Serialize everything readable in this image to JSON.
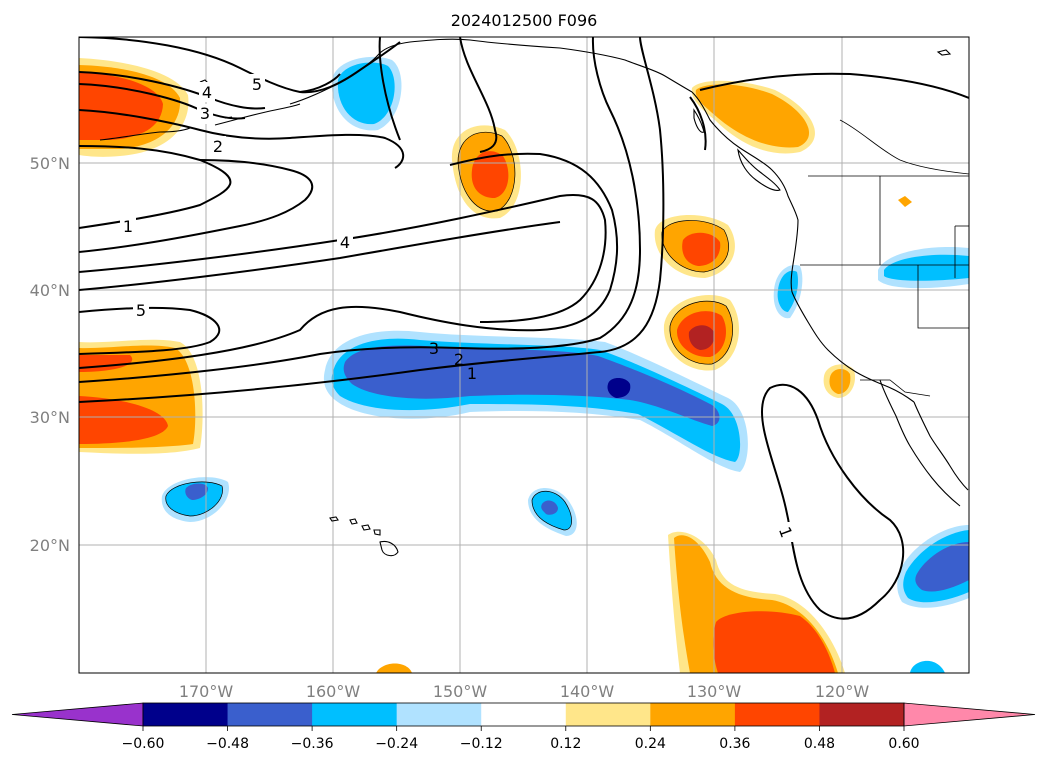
{
  "title": "2024012500 F096",
  "map": {
    "lat_labels": [
      "50°N",
      "40°N",
      "30°N",
      "20°N"
    ],
    "lon_labels": [
      "170°W",
      "160°W",
      "150°W",
      "140°W",
      "130°W",
      "120°W"
    ],
    "contour_labels": [
      {
        "text": "5"
      },
      {
        "text": "4"
      },
      {
        "text": "3"
      },
      {
        "text": "2"
      },
      {
        "text": "1"
      },
      {
        "text": "4"
      },
      {
        "text": "5"
      },
      {
        "text": "3"
      },
      {
        "text": "2"
      },
      {
        "text": "1"
      },
      {
        "text": "1"
      }
    ],
    "colors": {
      "neg60": "#9932cc",
      "neg48": "#00008b",
      "neg36": "#3a5fcd",
      "neg24": "#00bfff",
      "neg12": "#b0e2ff",
      "zero": "#ffffff",
      "pos12": "#ffe68a",
      "pos24": "#ffa500",
      "pos36": "#ff4500",
      "pos48": "#b22222",
      "pos60": "#ff88aa"
    }
  },
  "colorbar": {
    "ticks": [
      "−0.60",
      "−0.48",
      "−0.36",
      "−0.24",
      "−0.12",
      "0.12",
      "0.24",
      "0.36",
      "0.48",
      "0.60"
    ],
    "colors": [
      "#9932cc",
      "#00008b",
      "#3a5fcd",
      "#00bfff",
      "#b0e2ff",
      "#ffffff",
      "#ffe68a",
      "#ffa500",
      "#ff4500",
      "#b22222",
      "#ff88aa"
    ]
  }
}
